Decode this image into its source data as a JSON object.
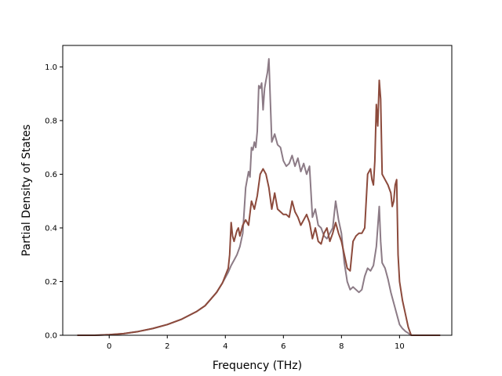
{
  "chart_data": {
    "type": "line",
    "xlabel": "Frequency (THz)",
    "ylabel": "Partial Density of States",
    "xlim": [
      -1.6,
      11.8
    ],
    "ylim": [
      0.0,
      1.08
    ],
    "xticks": [
      0,
      2,
      4,
      6,
      8,
      10
    ],
    "yticks": [
      0.0,
      0.2,
      0.4,
      0.6,
      0.8,
      1.0
    ],
    "xtick_labels": [
      "0",
      "2",
      "4",
      "6",
      "8",
      "10"
    ],
    "ytick_labels": [
      "0.0",
      "0.2",
      "0.4",
      "0.6",
      "0.8",
      "1.0"
    ],
    "grid": false,
    "series": [
      {
        "color": "#8c7b86",
        "points": [
          [
            -1.1,
            0
          ],
          [
            -0.5,
            0
          ],
          [
            0,
            0.002
          ],
          [
            0.5,
            0.006
          ],
          [
            1,
            0.014
          ],
          [
            1.5,
            0.025
          ],
          [
            2,
            0.04
          ],
          [
            2.5,
            0.06
          ],
          [
            3,
            0.088
          ],
          [
            3.3,
            0.11
          ],
          [
            3.5,
            0.135
          ],
          [
            3.7,
            0.16
          ],
          [
            3.9,
            0.195
          ],
          [
            4.1,
            0.235
          ],
          [
            4.2,
            0.26
          ],
          [
            4.3,
            0.28
          ],
          [
            4.4,
            0.3
          ],
          [
            4.5,
            0.33
          ],
          [
            4.6,
            0.38
          ],
          [
            4.7,
            0.55
          ],
          [
            4.8,
            0.61
          ],
          [
            4.85,
            0.59
          ],
          [
            4.9,
            0.7
          ],
          [
            4.95,
            0.69
          ],
          [
            5,
            0.72
          ],
          [
            5.05,
            0.7
          ],
          [
            5.1,
            0.76
          ],
          [
            5.15,
            0.93
          ],
          [
            5.2,
            0.92
          ],
          [
            5.25,
            0.94
          ],
          [
            5.3,
            0.84
          ],
          [
            5.35,
            0.92
          ],
          [
            5.4,
            0.95
          ],
          [
            5.45,
            0.98
          ],
          [
            5.5,
            1.03
          ],
          [
            5.55,
            0.87
          ],
          [
            5.6,
            0.72
          ],
          [
            5.7,
            0.75
          ],
          [
            5.8,
            0.71
          ],
          [
            5.9,
            0.7
          ],
          [
            6,
            0.65
          ],
          [
            6.1,
            0.63
          ],
          [
            6.2,
            0.64
          ],
          [
            6.3,
            0.67
          ],
          [
            6.4,
            0.63
          ],
          [
            6.5,
            0.66
          ],
          [
            6.6,
            0.61
          ],
          [
            6.7,
            0.64
          ],
          [
            6.8,
            0.6
          ],
          [
            6.9,
            0.63
          ],
          [
            7,
            0.44
          ],
          [
            7.1,
            0.47
          ],
          [
            7.2,
            0.41
          ],
          [
            7.3,
            0.4
          ],
          [
            7.4,
            0.37
          ],
          [
            7.5,
            0.36
          ],
          [
            7.6,
            0.38
          ],
          [
            7.7,
            0.4
          ],
          [
            7.8,
            0.5
          ],
          [
            7.9,
            0.43
          ],
          [
            8,
            0.38
          ],
          [
            8.1,
            0.27
          ],
          [
            8.2,
            0.2
          ],
          [
            8.3,
            0.17
          ],
          [
            8.4,
            0.18
          ],
          [
            8.5,
            0.17
          ],
          [
            8.6,
            0.16
          ],
          [
            8.7,
            0.17
          ],
          [
            8.8,
            0.22
          ],
          [
            8.9,
            0.25
          ],
          [
            9,
            0.24
          ],
          [
            9.1,
            0.26
          ],
          [
            9.2,
            0.33
          ],
          [
            9.3,
            0.48
          ],
          [
            9.35,
            0.35
          ],
          [
            9.4,
            0.27
          ],
          [
            9.5,
            0.25
          ],
          [
            9.6,
            0.21
          ],
          [
            9.7,
            0.16
          ],
          [
            9.8,
            0.12
          ],
          [
            9.9,
            0.08
          ],
          [
            10,
            0.04
          ],
          [
            10.1,
            0.025
          ],
          [
            10.2,
            0.015
          ],
          [
            10.3,
            0.008
          ],
          [
            10.4,
            0
          ],
          [
            11,
            0
          ],
          [
            11.4,
            0
          ]
        ]
      },
      {
        "color": "#8c4a3c",
        "points": [
          [
            -1.1,
            0
          ],
          [
            -0.5,
            0
          ],
          [
            0,
            0.002
          ],
          [
            0.5,
            0.006
          ],
          [
            1,
            0.014
          ],
          [
            1.5,
            0.025
          ],
          [
            2,
            0.04
          ],
          [
            2.5,
            0.06
          ],
          [
            3,
            0.088
          ],
          [
            3.3,
            0.11
          ],
          [
            3.5,
            0.135
          ],
          [
            3.7,
            0.16
          ],
          [
            3.9,
            0.195
          ],
          [
            4.1,
            0.25
          ],
          [
            4.15,
            0.3
          ],
          [
            4.2,
            0.42
          ],
          [
            4.25,
            0.37
          ],
          [
            4.3,
            0.35
          ],
          [
            4.35,
            0.37
          ],
          [
            4.4,
            0.39
          ],
          [
            4.45,
            0.4
          ],
          [
            4.5,
            0.37
          ],
          [
            4.55,
            0.39
          ],
          [
            4.6,
            0.41
          ],
          [
            4.7,
            0.43
          ],
          [
            4.8,
            0.41
          ],
          [
            4.9,
            0.5
          ],
          [
            5,
            0.47
          ],
          [
            5.1,
            0.52
          ],
          [
            5.2,
            0.6
          ],
          [
            5.3,
            0.62
          ],
          [
            5.4,
            0.6
          ],
          [
            5.5,
            0.55
          ],
          [
            5.6,
            0.47
          ],
          [
            5.7,
            0.53
          ],
          [
            5.8,
            0.47
          ],
          [
            5.9,
            0.46
          ],
          [
            6,
            0.45
          ],
          [
            6.1,
            0.45
          ],
          [
            6.2,
            0.44
          ],
          [
            6.3,
            0.5
          ],
          [
            6.4,
            0.46
          ],
          [
            6.5,
            0.44
          ],
          [
            6.6,
            0.41
          ],
          [
            6.7,
            0.43
          ],
          [
            6.8,
            0.45
          ],
          [
            6.9,
            0.42
          ],
          [
            7,
            0.36
          ],
          [
            7.1,
            0.4
          ],
          [
            7.2,
            0.35
          ],
          [
            7.3,
            0.34
          ],
          [
            7.4,
            0.38
          ],
          [
            7.5,
            0.4
          ],
          [
            7.6,
            0.35
          ],
          [
            7.7,
            0.38
          ],
          [
            7.8,
            0.42
          ],
          [
            7.9,
            0.38
          ],
          [
            8,
            0.35
          ],
          [
            8.1,
            0.3
          ],
          [
            8.2,
            0.25
          ],
          [
            8.3,
            0.24
          ],
          [
            8.4,
            0.35
          ],
          [
            8.5,
            0.37
          ],
          [
            8.6,
            0.38
          ],
          [
            8.7,
            0.38
          ],
          [
            8.8,
            0.4
          ],
          [
            8.9,
            0.6
          ],
          [
            9,
            0.62
          ],
          [
            9.05,
            0.58
          ],
          [
            9.1,
            0.56
          ],
          [
            9.15,
            0.65
          ],
          [
            9.2,
            0.86
          ],
          [
            9.25,
            0.78
          ],
          [
            9.3,
            0.95
          ],
          [
            9.35,
            0.88
          ],
          [
            9.4,
            0.6
          ],
          [
            9.5,
            0.58
          ],
          [
            9.6,
            0.56
          ],
          [
            9.7,
            0.53
          ],
          [
            9.75,
            0.48
          ],
          [
            9.8,
            0.5
          ],
          [
            9.85,
            0.56
          ],
          [
            9.9,
            0.58
          ],
          [
            9.95,
            0.3
          ],
          [
            10,
            0.2
          ],
          [
            10.1,
            0.13
          ],
          [
            10.2,
            0.08
          ],
          [
            10.3,
            0.03
          ],
          [
            10.4,
            0
          ],
          [
            11,
            0
          ],
          [
            11.4,
            0
          ]
        ]
      }
    ]
  }
}
